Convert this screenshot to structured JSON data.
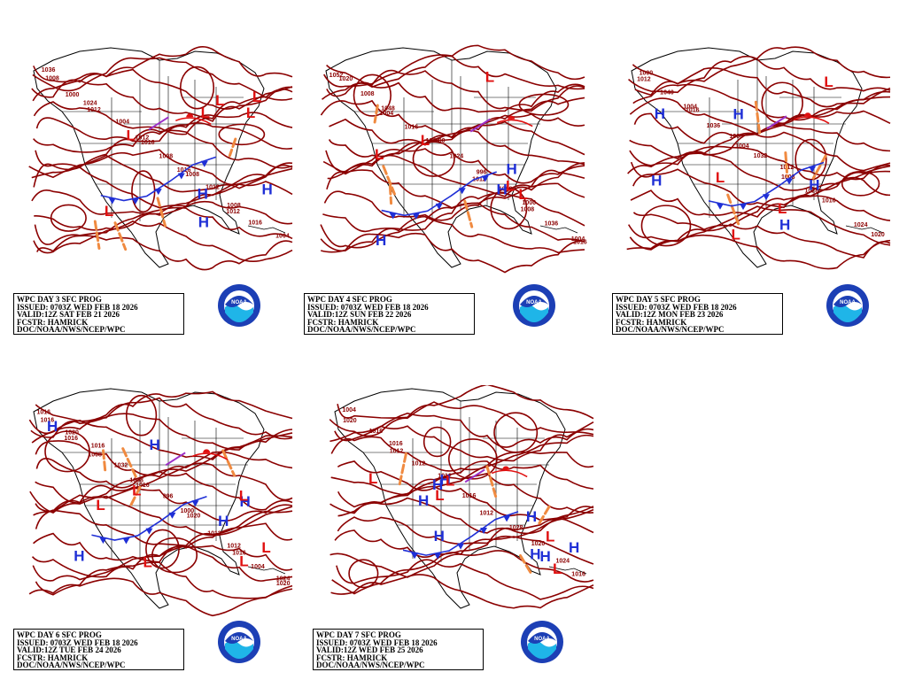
{
  "panels": [
    {
      "day": 3,
      "lines": [
        "WPC DAY 3 SFC PROG",
        "ISSUED: 0703Z WED FEB 18 2026",
        "VALID:12Z SAT FEB 21 2026",
        "FCSTR: HAMRICK",
        "DOC/NOAA/NWS/NCEP/WPC"
      ],
      "isobars": [
        "1036",
        "1024",
        "1012",
        "1016",
        "1008",
        "1004",
        "1000",
        "1004",
        "1008",
        "1012",
        "1016",
        "1008",
        "1012",
        "1016",
        "1008",
        "1012"
      ],
      "highs": 3,
      "lows": 6
    },
    {
      "day": 4,
      "lines": [
        "WPC DAY 4 SFC PROG",
        "ISSUED: 0703Z WED FEB 18 2026",
        "VALID:12Z SUN FEB 22 2026",
        "FCSTR: HAMRICK",
        "DOC/NOAA/NWS/NCEP/WPC"
      ],
      "isobars": [
        "1052",
        "1048",
        "1040",
        "996",
        "1000",
        "1004",
        "1008",
        "1016",
        "1024",
        "1032",
        "1036",
        "1020",
        "1004",
        "1000",
        "1012",
        "1008",
        "1016"
      ],
      "highs": 3,
      "lows": 5
    },
    {
      "day": 5,
      "lines": [
        "WPC DAY 5 SFC PROG",
        "ISSUED: 0703Z WED FEB 18 2026",
        "VALID:12Z MON FEB 23 2026",
        "FCSTR: HAMRICK",
        "DOC/NOAA/NWS/NCEP/WPC"
      ],
      "isobars": [
        "1000",
        "1004",
        "1008",
        "1012",
        "1016",
        "1020",
        "1040",
        "1036",
        "1032",
        "1028",
        "1024",
        "1012",
        "1016",
        "1004",
        "1008"
      ],
      "highs": 5,
      "lows": 4
    },
    {
      "day": 6,
      "lines": [
        "WPC DAY 6 SFC PROG",
        "ISSUED: 0703Z WED FEB 18 2026",
        "VALID:12Z TUE FEB 24 2026",
        "FCSTR: HAMRICK",
        "DOC/NOAA/NWS/NCEP/WPC"
      ],
      "isobars": [
        "1016",
        "1016",
        "1008",
        "1000",
        "1012",
        "1024",
        "1020",
        "1032",
        "996",
        "1012",
        "1004",
        "1016",
        "1008",
        "1016",
        "1020",
        "1016",
        "1020",
        "1016"
      ],
      "highs": 5,
      "lows": 6
    },
    {
      "day": 7,
      "lines": [
        "WPC DAY 7 SFC PROG",
        "ISSUED: 0703Z WED FEB 18 2026",
        "VALID:12Z WED FEB 25 2026",
        "FCSTR: HAMRICK",
        "DOC/NOAA/NWS/NCEP/WPC"
      ],
      "isobars": [
        "1004",
        "1016",
        "1012",
        "1012",
        "1020",
        "1016",
        "1016",
        "1012",
        "1016",
        "1028",
        "1024",
        "1020",
        "1012"
      ],
      "highs": 8,
      "lows": 5
    }
  ],
  "logo_text": "NOAA",
  "colors": {
    "isobar": "#8b0000",
    "high": "#1f2fd6",
    "low": "#e01010",
    "trough": "#f08a40",
    "cold_front": "#1f2fd6",
    "warm_front": "#e01010",
    "occluded": "#9b30c8",
    "coast": "#000000"
  }
}
